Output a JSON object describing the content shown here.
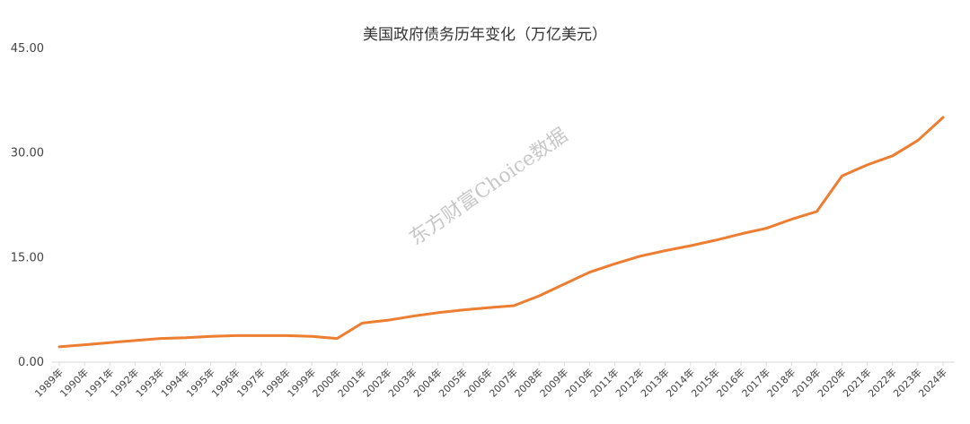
{
  "chart_data": {
    "type": "line",
    "title": "美国政府债务历年变化（万亿美元）",
    "x": [
      "1989年",
      "1990年",
      "1991年",
      "1992年",
      "1993年",
      "1994年",
      "1995年",
      "1996年",
      "1997年",
      "1998年",
      "1999年",
      "2000年",
      "2001年",
      "2002年",
      "2003年",
      "2004年",
      "2005年",
      "2006年",
      "2007年",
      "2008年",
      "2009年",
      "2010年",
      "2011年",
      "2012年",
      "2013年",
      "2014年",
      "2015年",
      "2016年",
      "2017年",
      "2018年",
      "2019年",
      "2020年",
      "2021年",
      "2022年",
      "2023年",
      "2024年"
    ],
    "series": [
      {
        "values": [
          2.2,
          2.5,
          2.8,
          3.1,
          3.4,
          3.5,
          3.7,
          3.8,
          3.8,
          3.8,
          3.7,
          3.4,
          5.6,
          6.0,
          6.6,
          7.1,
          7.5,
          7.8,
          8.1,
          9.5,
          11.2,
          12.9,
          14.1,
          15.2,
          16.0,
          16.7,
          17.5,
          18.4,
          19.2,
          20.5,
          21.6,
          26.7,
          28.3,
          29.6,
          31.8,
          35.1
        ],
        "color": "#ED7D31"
      }
    ],
    "yticks": [
      "0.00",
      "15.00",
      "30.00",
      "45.00"
    ],
    "ylim": [
      0,
      45
    ],
    "grid": false,
    "legend": "none"
  },
  "watermark": "东方财富Choice数据"
}
